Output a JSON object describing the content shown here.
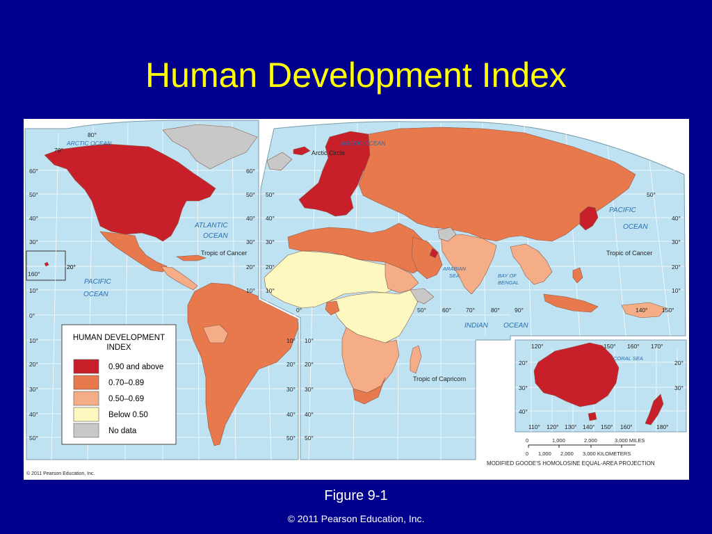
{
  "slide": {
    "title": "Human Development Index",
    "caption": "Figure 9-1",
    "credit": "© 2011 Pearson Education, Inc."
  },
  "colors": {
    "background": "#00008c",
    "title": "#ffff00",
    "ocean": "#bfe2f2",
    "hdi_090_above": "#c8202b",
    "hdi_070_089": "#e7794c",
    "hdi_050_069": "#f4ad86",
    "hdi_below_050": "#fdf8c0",
    "no_data": "#c8c8c8"
  },
  "legend": {
    "title_line1": "HUMAN DEVELOPMENT",
    "title_line2": "INDEX",
    "items": [
      {
        "label": "0.90 and above",
        "color": "#c8202b"
      },
      {
        "label": "0.70–0.89",
        "color": "#e7794c"
      },
      {
        "label": "0.50–0.69",
        "color": "#f4ad86"
      },
      {
        "label": "Below 0.50",
        "color": "#fdf8c0"
      },
      {
        "label": "No data",
        "color": "#c8c8c8"
      }
    ]
  },
  "map_labels": {
    "arctic_ocean_west": "ARCTIC OCEAN",
    "arctic_ocean_east": "ARCTIC OCEAN",
    "arctic_circle": "Arctic Circle",
    "atlantic_1": "ATLANTIC",
    "atlantic_2": "OCEAN",
    "pacific_west_1": "PACIFIC",
    "pacific_west_2": "OCEAN",
    "pacific_east_1": "PACIFIC",
    "pacific_east_2": "OCEAN",
    "indian": "INDIAN",
    "indian_ocean": "OCEAN",
    "arabian_1": "ARABIAN",
    "arabian_2": "SEA",
    "bengal_1": "BAY OF",
    "bengal_2": "BENGAL",
    "coral_sea": "CORAL SEA",
    "tropic_cancer_west": "Tropic of Cancer",
    "tropic_cancer_east": "Tropic of Cancer",
    "tropic_capricorn": "Tropic of Capricorn",
    "map_copyright": "© 2011 Pearson Education, Inc.",
    "projection": "MODIFIED GOODE'S HOMOLOSINE EQUAL-AREA PROJECTION"
  },
  "scale_bar": {
    "miles": [
      "0",
      "1,000",
      "2,000",
      "3,000 MILES"
    ],
    "km": [
      "0",
      "1,000",
      "2,000",
      "3,000 KILOMETERS"
    ]
  },
  "graticule_labels": {
    "left_lat": [
      "60°",
      "50°",
      "40°",
      "30°",
      "20°",
      "10°",
      "0°",
      "10°",
      "20°",
      "30°",
      "40°",
      "50°"
    ],
    "mid_left_lat": [
      "60°",
      "50°",
      "40°",
      "30°",
      "20°",
      "10°"
    ],
    "mid_right_lat": [
      "50°",
      "40°",
      "30°",
      "20°",
      "10°"
    ],
    "south_mid_lat": [
      "10°",
      "20°",
      "30°",
      "40°",
      "50°"
    ],
    "south_africa_lat": [
      "10°",
      "20°",
      "30°",
      "40°",
      "50°"
    ],
    "right_lat": [
      "50°",
      "40°",
      "30°",
      "20°",
      "10°"
    ],
    "australia_lat": [
      "20°",
      "30°",
      "40°"
    ],
    "australia_right_lat": [
      "20°",
      "30°"
    ],
    "top": [
      "80°",
      "70°"
    ],
    "lon_equator": [
      "0°",
      "50°",
      "60°",
      "70°",
      "80°",
      "90°",
      "140°",
      "150°"
    ],
    "inset": [
      "160°",
      "20°"
    ],
    "aus_top_lon": [
      "120°",
      "150°",
      "160°",
      "170°"
    ],
    "aus_bottom_lon": [
      "110°",
      "120°",
      "130°",
      "140°",
      "150°",
      "160°",
      "180°"
    ]
  }
}
